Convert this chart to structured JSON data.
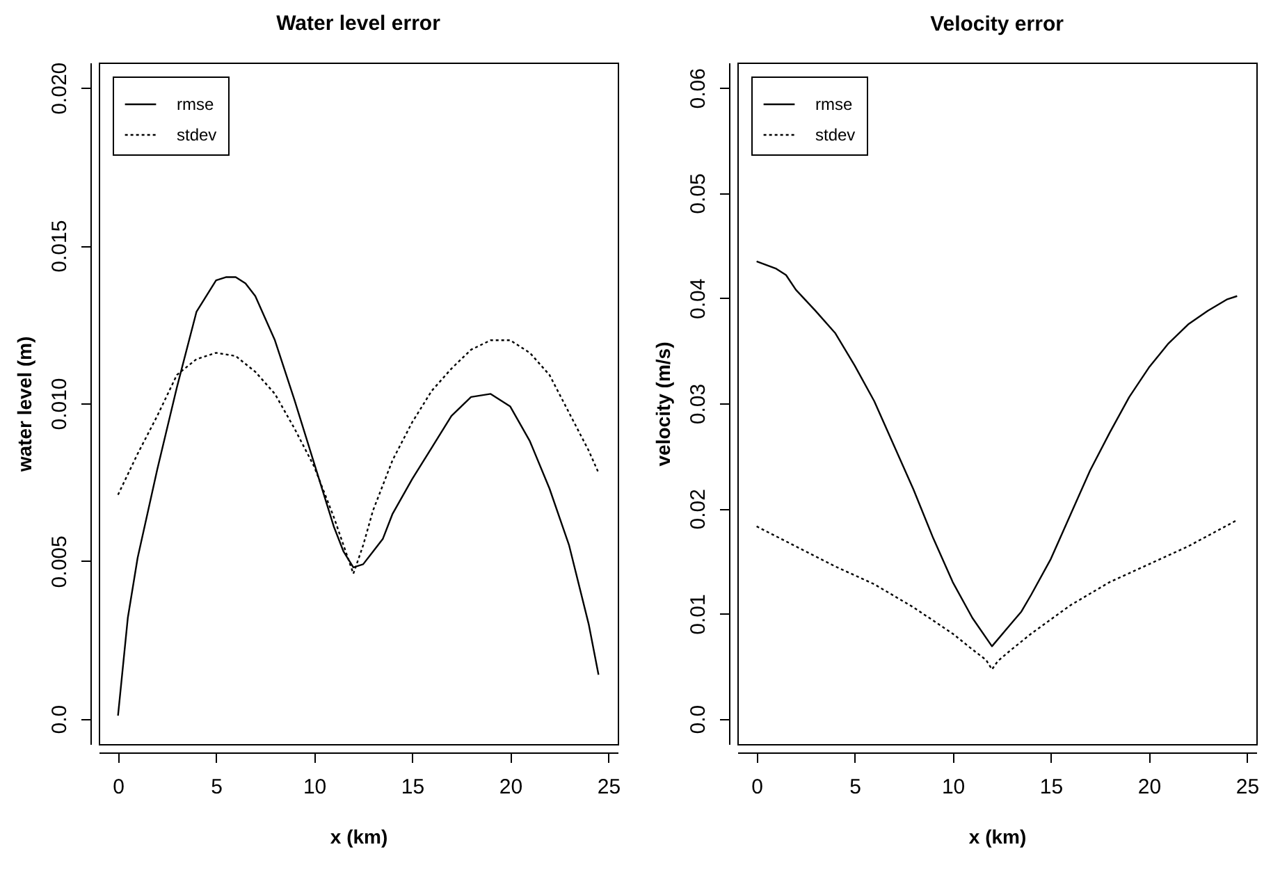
{
  "chart_data": [
    {
      "type": "line",
      "title": "Water level error",
      "xlabel": "x (km)",
      "ylabel": "water level (m)",
      "xlim": [
        -0.98,
        25.48
      ],
      "xticks": [
        0,
        5,
        10,
        15,
        20,
        25
      ],
      "ylim": [
        -0.0008,
        0.0208
      ],
      "yticks": [
        {
          "value": 0,
          "label": "0.0"
        },
        0.005,
        {
          "value": 0.01,
          "label": "0.010"
        },
        0.015,
        {
          "value": 0.02,
          "label": "0.020"
        }
      ],
      "legend": "top left",
      "grid": false,
      "series": [
        {
          "name": "rmse",
          "color": "#000000",
          "line_style": "solid",
          "x": [
            0,
            0.5,
            1,
            2,
            3,
            4,
            5,
            5.5,
            6,
            6.5,
            7,
            8,
            9,
            10,
            11,
            11.5,
            12,
            12.5,
            13,
            13.5,
            14,
            15,
            16,
            17,
            18,
            19,
            19.5,
            20,
            21,
            22,
            23,
            24,
            24.5
          ],
          "values": [
            0.0001,
            0.0032,
            0.0051,
            0.0079,
            0.0105,
            0.0129,
            0.0139,
            0.014,
            0.014,
            0.0138,
            0.0134,
            0.012,
            0.0101,
            0.0081,
            0.0061,
            0.0053,
            0.0048,
            0.0049,
            0.0053,
            0.0057,
            0.0065,
            0.0076,
            0.0086,
            0.0096,
            0.0102,
            0.0103,
            0.0101,
            0.0099,
            0.0088,
            0.0073,
            0.0055,
            0.003,
            0.0014
          ]
        },
        {
          "name": "stdev",
          "color": "#000000",
          "line_style": "dotted",
          "x": [
            0,
            1,
            2,
            3,
            4,
            5,
            6,
            7,
            8,
            9,
            10,
            11,
            11.5,
            12,
            12.5,
            13,
            14,
            15,
            16,
            17,
            18,
            19,
            19.5,
            20,
            21,
            22,
            23,
            24,
            24.5
          ],
          "values": [
            0.0071,
            0.0084,
            0.0096,
            0.0109,
            0.0114,
            0.0116,
            0.0115,
            0.011,
            0.0103,
            0.0092,
            0.008,
            0.0064,
            0.0055,
            0.0046,
            0.0055,
            0.0066,
            0.0082,
            0.0094,
            0.0104,
            0.0111,
            0.0117,
            0.012,
            0.012,
            0.012,
            0.0116,
            0.0109,
            0.0097,
            0.0085,
            0.0078
          ]
        }
      ]
    },
    {
      "type": "line",
      "title": "Velocity error",
      "xlabel": "x (km)",
      "ylabel": "velocity (m/s)",
      "xlim": [
        -0.98,
        25.48
      ],
      "xticks": [
        0,
        5,
        10,
        15,
        20,
        25
      ],
      "ylim": [
        -0.0024,
        0.0624
      ],
      "yticks": [
        {
          "value": 0,
          "label": "0.0"
        },
        0.01,
        0.02,
        0.03,
        0.04,
        0.05,
        0.06
      ],
      "legend": "top left",
      "grid": false,
      "series": [
        {
          "name": "rmse",
          "color": "#000000",
          "line_style": "solid",
          "x": [
            0,
            1,
            1.5,
            2,
            3,
            4,
            5,
            6,
            7,
            8,
            9,
            10,
            11,
            12,
            13,
            13.5,
            14,
            15,
            16,
            17,
            18,
            19,
            20,
            21,
            22,
            23,
            24,
            24.5
          ],
          "values": [
            0.0435,
            0.0428,
            0.0422,
            0.0408,
            0.0388,
            0.0367,
            0.0336,
            0.0302,
            0.026,
            0.0218,
            0.0172,
            0.013,
            0.0096,
            0.0069,
            0.0091,
            0.0102,
            0.0118,
            0.0152,
            0.0194,
            0.0236,
            0.0272,
            0.0306,
            0.0334,
            0.0357,
            0.0375,
            0.0388,
            0.0399,
            0.0402
          ]
        },
        {
          "name": "stdev",
          "color": "#000000",
          "line_style": "dotted",
          "x": [
            0,
            2,
            4,
            6,
            8,
            10,
            11,
            11.7,
            12,
            12.3,
            13,
            14,
            16,
            18,
            20,
            22,
            24,
            24.5
          ],
          "values": [
            0.0183,
            0.0164,
            0.0145,
            0.0128,
            0.0106,
            0.0081,
            0.0066,
            0.0056,
            0.0047,
            0.0055,
            0.0066,
            0.0081,
            0.0108,
            0.013,
            0.0147,
            0.0164,
            0.0184,
            0.0189
          ]
        }
      ]
    }
  ]
}
